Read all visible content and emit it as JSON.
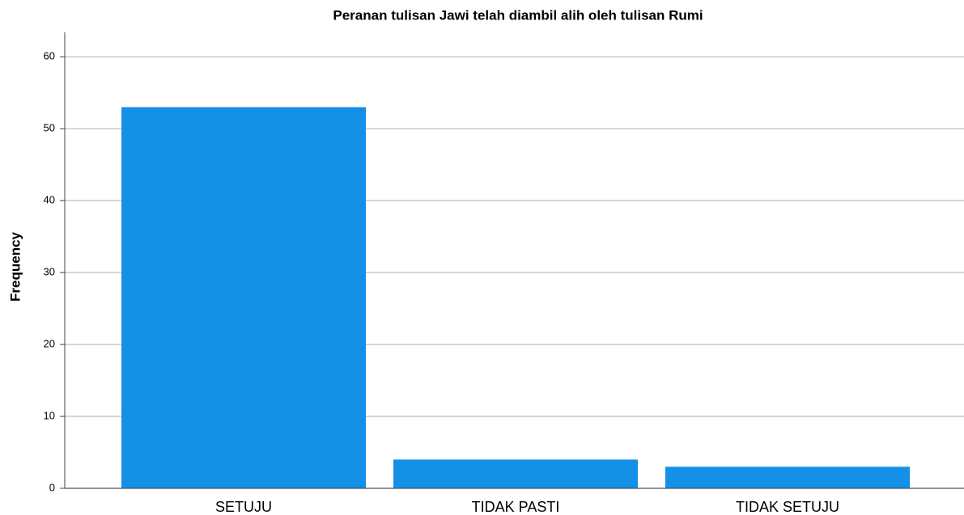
{
  "chart_data": {
    "type": "bar",
    "title": "Peranan tulisan Jawi telah diambil alih oleh tulisan Rumi",
    "y_label": "Frequency",
    "categories": [
      "SETUJU",
      "TIDAK PASTI",
      "TIDAK SETUJU"
    ],
    "values": [
      53,
      4,
      3
    ],
    "color": "#1490e6",
    "ylim": [
      0,
      63.4
    ],
    "yticks": [
      0,
      10,
      20,
      30,
      40,
      50,
      60
    ],
    "grid": true
  }
}
